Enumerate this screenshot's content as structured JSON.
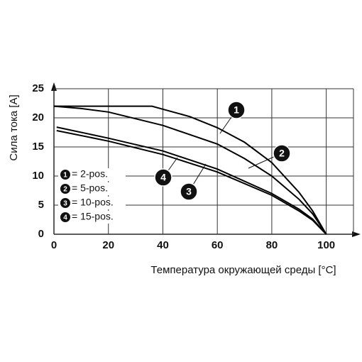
{
  "chart_data": {
    "type": "line",
    "y_label": "Сила тока [A]",
    "x_label": "Температура окружающей среды [°C]",
    "xlim": [
      0,
      110
    ],
    "ylim": [
      0,
      25
    ],
    "xticks": [
      0,
      20,
      40,
      60,
      80,
      100
    ],
    "yticks": [
      0,
      5,
      10,
      15,
      20,
      25
    ],
    "grid": true,
    "series": [
      {
        "name": "= 2-pos.",
        "label": "1",
        "color": "#000000",
        "x": [
          0,
          36,
          50,
          60,
          70,
          80,
          90,
          95,
          100
        ],
        "values": [
          22,
          22,
          20.2,
          18.3,
          15.8,
          12.3,
          7.2,
          4,
          0
        ]
      },
      {
        "name": "= 5-pos.",
        "label": "2",
        "color": "#000000",
        "x": [
          0,
          10,
          20,
          40,
          60,
          70,
          80,
          90,
          95,
          100
        ],
        "values": [
          22,
          21.6,
          21,
          18.7,
          15.5,
          13,
          10,
          6,
          3.5,
          0
        ]
      },
      {
        "name": "= 10-pos.",
        "label": "3",
        "color": "#000000",
        "x": [
          1,
          20,
          40,
          60,
          80,
          90,
          95,
          100
        ],
        "values": [
          18.4,
          16.5,
          14.3,
          11.2,
          7,
          4.3,
          2.6,
          0
        ]
      },
      {
        "name": "= 15-pos.",
        "label": "4",
        "color": "#000000",
        "x": [
          1,
          20,
          40,
          60,
          80,
          90,
          95,
          100
        ],
        "values": [
          17.8,
          16,
          13.7,
          10.7,
          6.7,
          4,
          2.4,
          0
        ]
      }
    ]
  }
}
